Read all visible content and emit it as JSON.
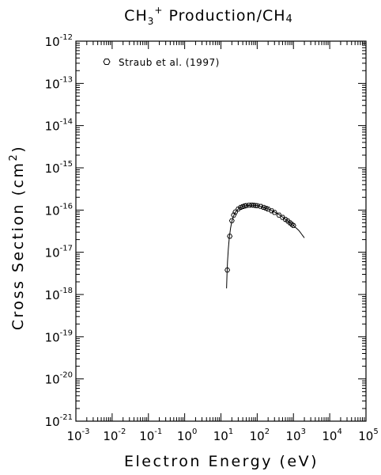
{
  "chart_data": {
    "type": "scatter",
    "title_main": "CH",
    "title_sub": "3",
    "title_sup": "+",
    "title_rest": " Production/CH",
    "title_sub2": "4",
    "xlabel": "Electron Energy (eV)",
    "ylabel_main": "Cross Section (cm",
    "ylabel_sup": "2",
    "ylabel_end": ")",
    "x_scale": "log",
    "y_scale": "log",
    "xlim": [
      0.001,
      100000
    ],
    "ylim": [
      1e-21,
      1e-12
    ],
    "x_tick_exponents": [
      "-3",
      "-2",
      "-1",
      "0",
      "1",
      "2",
      "3",
      "4",
      "5"
    ],
    "y_tick_exponents": [
      "-21",
      "-20",
      "-19",
      "-18",
      "-17",
      "-16",
      "-15",
      "-14",
      "-13",
      "-12"
    ],
    "tick_base": "10",
    "legend": {
      "placement": "top-left",
      "marker": "hexagon-open"
    },
    "series": [
      {
        "name": "Straub et al. (1997)",
        "kind": "points",
        "marker": "hexagon-open",
        "x": [
          15,
          17.5,
          20,
          22.5,
          25,
          30,
          35,
          40,
          45,
          50,
          60,
          70,
          80,
          90,
          100,
          125,
          150,
          175,
          200,
          250,
          300,
          400,
          500,
          600,
          700,
          800,
          900,
          1000
        ],
        "y": [
          3.8e-18,
          2.4e-17,
          5.6e-17,
          7.6e-17,
          9e-17,
          1.06e-16,
          1.16e-16,
          1.21e-16,
          1.25e-16,
          1.28e-16,
          1.3e-16,
          1.31e-16,
          1.3e-16,
          1.28e-16,
          1.27e-16,
          1.22e-16,
          1.16e-16,
          1.1e-16,
          1.05e-16,
          9.6e-17,
          8.8e-17,
          7.6e-17,
          6.7e-17,
          6e-17,
          5.5e-17,
          5e-17,
          4.6e-17,
          4.3e-17
        ]
      },
      {
        "name": "",
        "kind": "line",
        "x": [
          14.3,
          14.7,
          15.2,
          16,
          17,
          18.5,
          20,
          22,
          25,
          30,
          35,
          40,
          50,
          60,
          70,
          80,
          100,
          130,
          170,
          220,
          300,
          400,
          500,
          700,
          1000,
          1400,
          2000
        ],
        "y": [
          1.4e-18,
          3e-18,
          6e-18,
          1.2e-17,
          2.2e-17,
          3.8e-17,
          5.4e-17,
          7e-17,
          8.9e-17,
          1.06e-16,
          1.16e-16,
          1.22e-16,
          1.28e-16,
          1.3e-16,
          1.31e-16,
          1.3e-16,
          1.27e-16,
          1.2e-16,
          1.12e-16,
          1.03e-16,
          9e-17,
          7.8e-17,
          6.8e-17,
          5.5e-17,
          4.3e-17,
          3.3e-17,
          2.2e-17
        ]
      }
    ]
  }
}
